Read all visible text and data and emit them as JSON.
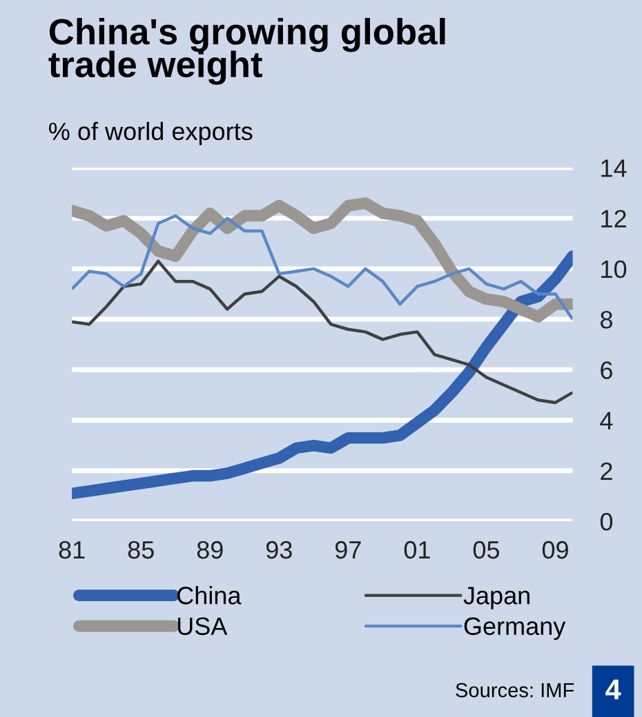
{
  "chart_data": {
    "type": "line",
    "title": "China's growing global\ntrade weight",
    "subtitle": "% of world exports",
    "x": [
      1981,
      1982,
      1983,
      1984,
      1985,
      1986,
      1987,
      1988,
      1989,
      1990,
      1991,
      1992,
      1993,
      1994,
      1995,
      1996,
      1997,
      1998,
      1999,
      2000,
      2001,
      2002,
      2003,
      2004,
      2005,
      2006,
      2007,
      2008,
      2009,
      2010
    ],
    "series": [
      {
        "name": "China",
        "color": "#3262b0",
        "values": [
          1.1,
          1.2,
          1.3,
          1.4,
          1.5,
          1.6,
          1.7,
          1.8,
          1.8,
          1.9,
          2.1,
          2.3,
          2.5,
          2.9,
          3.0,
          2.9,
          3.3,
          3.3,
          3.3,
          3.4,
          3.9,
          4.4,
          5.1,
          5.9,
          6.9,
          7.8,
          8.7,
          8.9,
          9.6,
          10.5
        ]
      },
      {
        "name": "USA",
        "color": "#9a9692",
        "values": [
          12.3,
          12.1,
          11.7,
          11.9,
          11.4,
          10.7,
          10.5,
          11.5,
          12.2,
          11.6,
          12.1,
          12.1,
          12.5,
          12.1,
          11.6,
          11.8,
          12.5,
          12.6,
          12.2,
          12.1,
          11.9,
          11.0,
          9.9,
          9.1,
          8.8,
          8.7,
          8.4,
          8.1,
          8.6,
          8.6
        ]
      },
      {
        "name": "Japan",
        "color": "#404040",
        "values": [
          7.9,
          7.8,
          8.5,
          9.3,
          9.4,
          10.3,
          9.5,
          9.5,
          9.2,
          8.4,
          9.0,
          9.1,
          9.7,
          9.3,
          8.7,
          7.8,
          7.6,
          7.5,
          7.2,
          7.4,
          7.5,
          6.6,
          6.4,
          6.2,
          5.7,
          5.4,
          5.1,
          4.8,
          4.7,
          5.1
        ]
      },
      {
        "name": "Germany",
        "color": "#5b87c8",
        "values": [
          9.2,
          9.9,
          9.8,
          9.3,
          9.8,
          11.8,
          12.1,
          11.6,
          11.4,
          12.0,
          11.5,
          11.5,
          9.8,
          9.9,
          10.0,
          9.7,
          9.3,
          10.0,
          9.5,
          8.6,
          9.3,
          9.5,
          9.8,
          10.0,
          9.4,
          9.2,
          9.5,
          9.0,
          9.0,
          8.0
        ]
      }
    ],
    "xlim": [
      1981,
      2010
    ],
    "xticks": [
      {
        "value": 1981,
        "label": "81"
      },
      {
        "value": 1985,
        "label": "85"
      },
      {
        "value": 1989,
        "label": "89"
      },
      {
        "value": 1993,
        "label": "93"
      },
      {
        "value": 1997,
        "label": "97"
      },
      {
        "value": 2001,
        "label": "01"
      },
      {
        "value": 2005,
        "label": "05"
      },
      {
        "value": 2009,
        "label": "09"
      }
    ],
    "ylim": [
      0,
      14
    ],
    "yticks": [
      0,
      2,
      4,
      6,
      8,
      10,
      12,
      14
    ],
    "grid": "y",
    "legend": "bottom",
    "marker": "none",
    "line_style": "solid",
    "annotations": [
      "Sources: IMF",
      "4"
    ]
  }
}
